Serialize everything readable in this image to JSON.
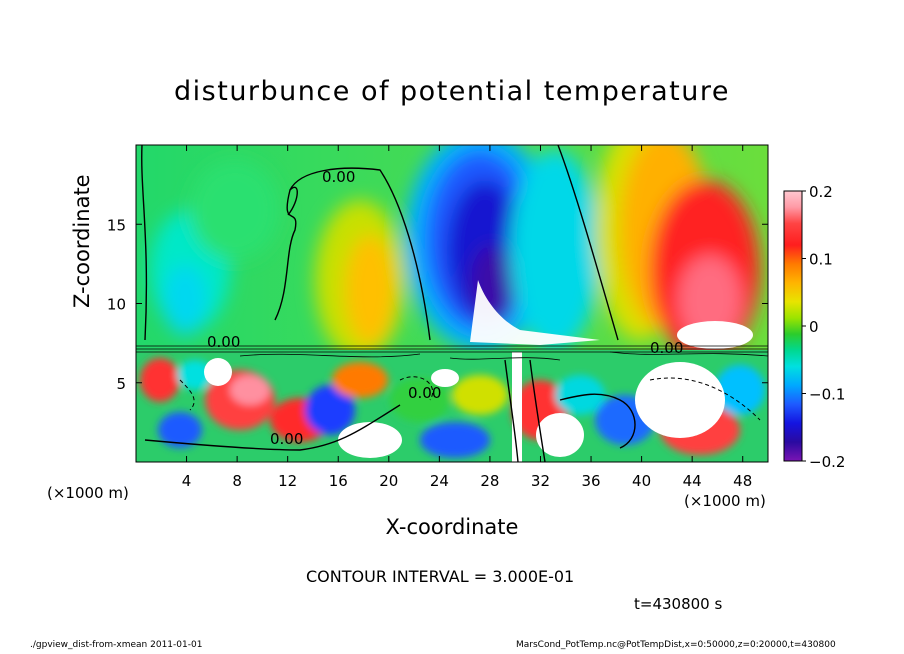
{
  "chart_data": {
    "type": "heatmap",
    "title": "disturbunce of potential temperature",
    "xlabel": "X-coordinate",
    "ylabel": "Z-coordinate",
    "x_unit": "(×1000 m)",
    "xlim": [
      0,
      50
    ],
    "ylim": [
      0,
      20
    ],
    "x_ticks": [
      4,
      8,
      12,
      16,
      20,
      24,
      28,
      32,
      36,
      40,
      44,
      48
    ],
    "y_ticks": [
      5,
      10,
      15
    ],
    "colorbar": {
      "range": [
        -0.2,
        0.2
      ],
      "ticks": [
        "0.2",
        "0.1",
        "0",
        "−0.1",
        "−0.2"
      ],
      "tick_values": [
        0.2,
        0.1,
        0,
        -0.1,
        -0.2
      ]
    },
    "contour_label": "0.00",
    "contour_interval_text": "CONTOUR INTERVAL = 3.000E-01",
    "time_text": "t=430800 s",
    "upper_layer_field": [
      {
        "x": 4,
        "z": 12,
        "value": -0.08
      },
      {
        "x": 10,
        "z": 12,
        "value": 0.0
      },
      {
        "x": 18,
        "z": 11,
        "value": 0.1
      },
      {
        "x": 27,
        "z": 14,
        "value": -0.18
      },
      {
        "x": 33,
        "z": 14,
        "value": -0.06
      },
      {
        "x": 38,
        "z": 15,
        "value": 0.08
      },
      {
        "x": 45,
        "z": 11,
        "value": 0.2
      }
    ]
  },
  "footer": {
    "left": "./gpview_dist-from-xmean  2011-01-01",
    "right": "MarsCond_PotTemp.nc@PotTempDist,x=0:50000,z=0:20000,t=430800"
  }
}
